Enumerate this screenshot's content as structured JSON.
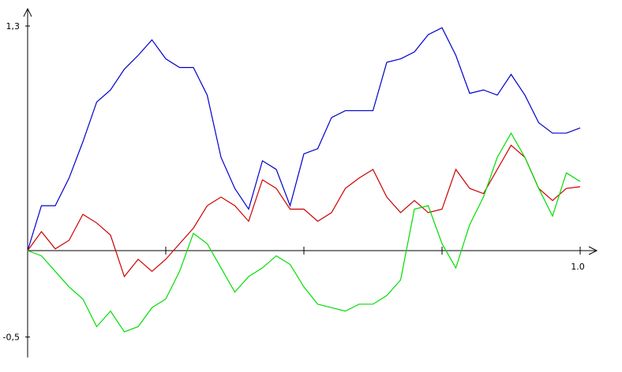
{
  "chart_data": {
    "type": "line",
    "x": [
      0,
      0.025,
      0.05,
      0.075,
      0.1,
      0.125,
      0.15,
      0.175,
      0.2,
      0.225,
      0.25,
      0.275,
      0.3,
      0.325,
      0.35,
      0.375,
      0.4,
      0.425,
      0.45,
      0.475,
      0.5,
      0.525,
      0.55,
      0.575,
      0.6,
      0.625,
      0.65,
      0.675,
      0.7,
      0.725,
      0.75,
      0.775,
      0.8,
      0.825,
      0.85,
      0.875,
      0.9,
      0.925,
      0.95,
      0.975,
      1.0
    ],
    "series": [
      {
        "color": "#0000cc",
        "values": [
          0,
          0.26,
          0.26,
          0.42,
          0.63,
          0.86,
          0.93,
          1.05,
          1.13,
          1.22,
          1.11,
          1.06,
          1.06,
          0.9,
          0.54,
          0.36,
          0.24,
          0.52,
          0.47,
          0.26,
          0.56,
          0.59,
          0.77,
          0.81,
          0.81,
          0.81,
          1.09,
          1.11,
          1.15,
          1.25,
          1.29,
          1.13,
          0.91,
          0.93,
          0.9,
          1.02,
          0.9,
          0.74,
          0.68,
          0.68,
          0.71
        ]
      },
      {
        "color": "#cc0000",
        "values": [
          0,
          0.11,
          0.01,
          0.06,
          0.21,
          0.16,
          0.09,
          -0.15,
          -0.05,
          -0.12,
          -0.05,
          0.04,
          0.13,
          0.26,
          0.31,
          0.26,
          0.17,
          0.41,
          0.36,
          0.24,
          0.24,
          0.17,
          0.22,
          0.36,
          0.42,
          0.47,
          0.31,
          0.22,
          0.29,
          0.22,
          0.24,
          0.47,
          0.36,
          0.33,
          0.47,
          0.61,
          0.54,
          0.36,
          0.29,
          0.36,
          0.37
        ]
      },
      {
        "color": "#00dd00",
        "values": [
          0,
          -0.03,
          -0.12,
          -0.21,
          -0.28,
          -0.44,
          -0.35,
          -0.47,
          -0.44,
          -0.33,
          -0.28,
          -0.12,
          0.1,
          0.04,
          -0.1,
          -0.24,
          -0.15,
          -0.1,
          -0.03,
          -0.08,
          -0.21,
          -0.31,
          -0.33,
          -0.35,
          -0.31,
          -0.31,
          -0.26,
          -0.17,
          0.24,
          0.26,
          0.04,
          -0.1,
          0.15,
          0.31,
          0.54,
          0.68,
          0.54,
          0.36,
          0.2,
          0.45,
          0.4
        ]
      }
    ],
    "xlim": [
      0,
      1.03
    ],
    "ylim": [
      -0.6,
      1.4
    ],
    "xticks": [
      {
        "value": 1.0,
        "label": "1.0"
      }
    ],
    "xminor_ticks": [
      0.25,
      0.5,
      0.75
    ],
    "yticks": [
      {
        "value": 1.3,
        "label": "1,3"
      },
      {
        "value": -0.5,
        "label": "-0,5"
      }
    ]
  }
}
